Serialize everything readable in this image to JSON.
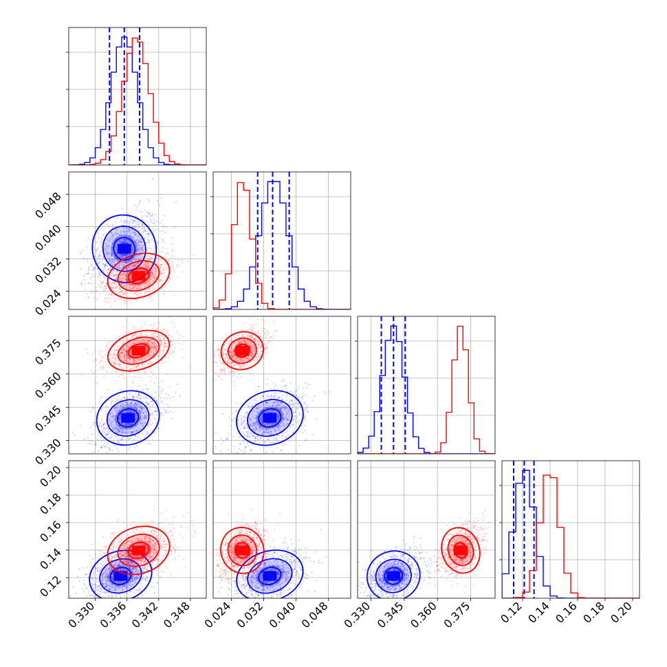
{
  "chart_data": {
    "type": "corner",
    "parameters": 4,
    "grid": true,
    "colors": {
      "blue": "#0000ff",
      "red": "#ff0000"
    },
    "axes": [
      {
        "range": [
          0.325,
          0.351
        ],
        "ticks": [
          0.33,
          0.336,
          0.342,
          0.348
        ],
        "tick_labels": [
          "0.330",
          "0.336",
          "0.342",
          "0.348"
        ]
      },
      {
        "range": [
          0.0195,
          0.0535
        ],
        "ticks": [
          0.024,
          0.032,
          0.04,
          0.048
        ],
        "tick_labels": [
          "0.024",
          "0.032",
          "0.040",
          "0.048"
        ]
      },
      {
        "range": [
          0.324,
          0.386
        ],
        "ticks": [
          0.33,
          0.345,
          0.36,
          0.375
        ],
        "tick_labels": [
          "0.330",
          "0.345",
          "0.360",
          "0.375"
        ]
      },
      {
        "range": [
          0.105,
          0.205
        ],
        "ticks": [
          0.12,
          0.14,
          0.16,
          0.18,
          0.2
        ],
        "tick_labels": [
          "0.12",
          "0.14",
          "0.16",
          "0.18",
          "0.20"
        ]
      }
    ],
    "series": [
      {
        "color": "blue",
        "mean": [
          0.3355,
          0.0345,
          0.3402,
          0.1212
        ],
        "std": [
          0.0025,
          0.0035,
          0.005,
          0.0075
        ],
        "quantiles_dashed": [
          [
            0.3327,
            0.3355,
            0.3384
          ],
          [
            0.0305,
            0.0342,
            0.0383
          ],
          [
            0.3347,
            0.3402,
            0.3455
          ],
          [
            0.1135,
            0.1212,
            0.1283
          ]
        ],
        "hist_bin_width": [
          0.001,
          0.0015,
          0.0025,
          0.005
        ],
        "contour_centers": {
          "1-0": [
            0.3355,
            0.0345
          ],
          "2-0": [
            0.3362,
            0.3402
          ],
          "2-1": [
            0.0335,
            0.3402
          ],
          "3-0": [
            0.3348,
            0.1212
          ],
          "3-1": [
            0.0335,
            0.1212
          ],
          "3-2": [
            0.3402,
            0.1212
          ]
        }
      },
      {
        "color": "red",
        "mean": [
          0.3378,
          0.0268,
          0.3705,
          0.1398
        ],
        "std": [
          0.0025,
          0.0022,
          0.0035,
          0.007
        ],
        "quantiles_dashed": [],
        "hist_bin_width": [
          0.001,
          0.0015,
          0.0025,
          0.005
        ],
        "contour_centers": {
          "1-0": [
            0.3382,
            0.0278
          ],
          "2-0": [
            0.3382,
            0.3705
          ],
          "2-1": [
            0.0267,
            0.3705
          ],
          "3-0": [
            0.3382,
            0.1398
          ],
          "3-1": [
            0.0267,
            0.1398
          ],
          "3-2": [
            0.3705,
            0.1398
          ]
        }
      }
    ],
    "contour_sigmas": [
      0.5,
      1.0,
      1.5
    ]
  }
}
